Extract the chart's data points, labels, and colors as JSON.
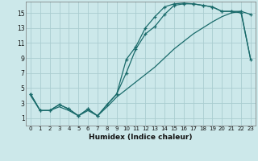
{
  "xlabel": "Humidex (Indice chaleur)",
  "bg_color": "#cce8ea",
  "grid_color": "#aacdd0",
  "line_color": "#1a6b6b",
  "xlim": [
    -0.5,
    23.5
  ],
  "ylim": [
    0,
    16.5
  ],
  "xticks": [
    0,
    1,
    2,
    3,
    4,
    5,
    6,
    7,
    8,
    9,
    10,
    11,
    12,
    13,
    14,
    15,
    16,
    17,
    18,
    19,
    20,
    21,
    22,
    23
  ],
  "yticks": [
    1,
    3,
    5,
    7,
    9,
    11,
    13,
    15
  ],
  "line1_x": [
    0,
    1,
    2,
    3,
    4,
    5,
    6,
    7,
    8,
    9,
    10,
    11,
    12,
    13,
    14,
    15,
    16,
    17,
    18,
    19,
    20,
    21,
    22,
    23
  ],
  "line1_y": [
    4.2,
    2.0,
    2.0,
    2.8,
    2.2,
    1.3,
    2.2,
    1.3,
    2.8,
    4.2,
    7.0,
    10.2,
    12.2,
    13.2,
    14.8,
    16.0,
    16.2,
    16.2,
    16.0,
    15.8,
    15.2,
    15.2,
    15.2,
    14.8
  ],
  "line2_x": [
    0,
    1,
    2,
    3,
    4,
    5,
    6,
    7,
    8,
    9,
    10,
    11,
    12,
    13,
    14,
    15,
    16,
    17,
    18,
    19,
    20,
    21,
    22,
    23
  ],
  "line2_y": [
    4.2,
    2.0,
    2.0,
    2.8,
    2.2,
    1.3,
    2.2,
    1.3,
    2.8,
    4.2,
    8.8,
    10.5,
    13.0,
    14.5,
    15.8,
    16.2,
    16.3,
    16.2,
    16.0,
    15.8,
    15.2,
    15.2,
    15.0,
    8.8
  ],
  "line3_x": [
    0,
    1,
    2,
    3,
    4,
    5,
    6,
    7,
    8,
    9,
    10,
    11,
    12,
    13,
    14,
    15,
    16,
    17,
    18,
    19,
    20,
    21,
    22,
    23
  ],
  "line3_y": [
    4.0,
    2.0,
    2.0,
    2.5,
    2.0,
    1.3,
    2.0,
    1.3,
    2.5,
    3.8,
    4.8,
    5.8,
    6.8,
    7.8,
    9.0,
    10.2,
    11.2,
    12.2,
    13.0,
    13.8,
    14.5,
    15.0,
    15.2,
    8.8
  ]
}
